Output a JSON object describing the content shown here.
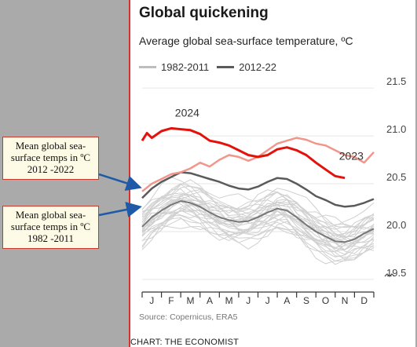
{
  "chart_data": {
    "type": "line",
    "title": "Global quickening",
    "subtitle": "Average global sea-surface temperature, ºC",
    "legend": [
      {
        "label": "1982-2011",
        "color": "#bdbdbd"
      },
      {
        "label": "2012-22",
        "color": "#6b6b6b"
      }
    ],
    "legend_position": "top-left",
    "x_ticks": [
      "J",
      "F",
      "M",
      "A",
      "M",
      "J",
      "J",
      "A",
      "S",
      "O",
      "N",
      "D"
    ],
    "y_ticks": [
      "21.5",
      "21.0",
      "20.5",
      "20.0",
      "19.5"
    ],
    "y_tick_values": [
      21.5,
      21.0,
      20.5,
      20.0,
      19.5
    ],
    "ylim": [
      19.45,
      21.6
    ],
    "xlim": [
      0,
      12
    ],
    "grid": true,
    "broken_axis": true,
    "series": [
      {
        "name": "2024",
        "color": "#e3120b",
        "x": [
          0,
          0.25,
          0.5,
          1,
          1.5,
          2,
          2.5,
          3,
          3.5,
          4,
          4.5,
          5,
          5.5,
          6,
          6.5,
          7,
          7.5,
          8,
          8.5,
          9,
          9.5,
          10,
          10.5
        ],
        "values": [
          20.95,
          21.03,
          20.98,
          21.05,
          21.08,
          21.07,
          21.06,
          21.02,
          20.95,
          20.93,
          20.9,
          20.85,
          20.8,
          20.78,
          20.8,
          20.86,
          20.88,
          20.85,
          20.8,
          20.72,
          20.65,
          20.58,
          20.56
        ]
      },
      {
        "name": "2023",
        "color": "#f1968a",
        "x": [
          0,
          0.5,
          1,
          1.5,
          2,
          2.5,
          3,
          3.5,
          4,
          4.5,
          5,
          5.5,
          6,
          6.5,
          7,
          7.5,
          8,
          8.5,
          9,
          9.5,
          10,
          10.5,
          11,
          11.5,
          12
        ],
        "values": [
          20.42,
          20.5,
          20.55,
          20.6,
          20.62,
          20.66,
          20.72,
          20.68,
          20.75,
          20.8,
          20.78,
          20.74,
          20.78,
          20.85,
          20.92,
          20.95,
          20.98,
          20.96,
          20.92,
          20.9,
          20.85,
          20.8,
          20.78,
          20.72,
          20.83
        ]
      },
      {
        "name": "2012-22",
        "color": "#5a5a5a",
        "x": [
          0,
          0.5,
          1,
          1.5,
          2,
          2.5,
          3,
          3.5,
          4,
          4.5,
          5,
          5.5,
          6,
          6.5,
          7,
          7.5,
          8,
          8.5,
          9,
          9.5,
          10,
          10.5,
          11,
          11.5,
          12
        ],
        "values": [
          20.35,
          20.45,
          20.52,
          20.57,
          20.62,
          20.61,
          20.58,
          20.55,
          20.52,
          20.48,
          20.45,
          20.44,
          20.47,
          20.52,
          20.56,
          20.55,
          20.5,
          20.44,
          20.37,
          20.33,
          20.28,
          20.26,
          20.27,
          20.3,
          20.34
        ]
      },
      {
        "name": "1982-2011",
        "color": "#777777",
        "x": [
          0,
          0.5,
          1,
          1.5,
          2,
          2.5,
          3,
          3.5,
          4,
          4.5,
          5,
          5.5,
          6,
          6.5,
          7,
          7.5,
          8,
          8.5,
          9,
          9.5,
          10,
          10.5,
          11,
          11.5,
          12
        ],
        "values": [
          20.05,
          20.15,
          20.22,
          20.28,
          20.32,
          20.3,
          20.26,
          20.2,
          20.15,
          20.12,
          20.1,
          20.11,
          20.15,
          20.2,
          20.24,
          20.22,
          20.15,
          20.07,
          20.0,
          19.95,
          19.9,
          19.89,
          19.92,
          19.98,
          20.03
        ]
      }
    ],
    "series_labels": [
      {
        "text": "2024",
        "x": 1.7,
        "y": 21.2
      },
      {
        "text": "2023",
        "x": 10.2,
        "y": 20.75
      }
    ],
    "source": "Source: Copernicus, ERA5"
  },
  "footer": "CHART: THE ECONOMIST",
  "annotations": [
    {
      "text": "Mean global sea-surface temps in ºC 2012 -2022"
    },
    {
      "text": "Mean global sea-surface temps in ºC 1982 -2011"
    }
  ],
  "colors": {
    "accent": "#e3120b",
    "background": "#a9aaa9",
    "annotation_border": "#c93a2c",
    "arrow": "#1e5aa8"
  }
}
